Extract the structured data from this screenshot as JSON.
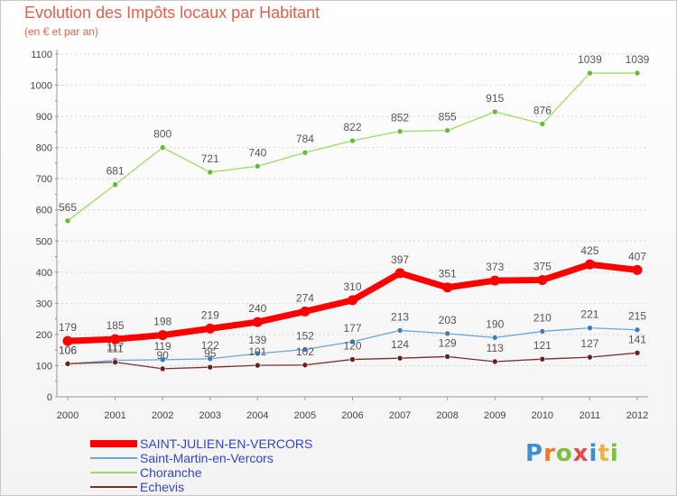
{
  "title": "Evolution des Impôts locaux par Habitant",
  "subtitle": "(en € et par an)",
  "logo": {
    "text": "Proxiti",
    "letter_colors": [
      "#3a8fd6",
      "#e8792b",
      "#7fbf3f",
      "#e84a4a",
      "#3a8fd6",
      "#f0b43a",
      "#7fbf3f"
    ]
  },
  "chart_data": {
    "type": "line",
    "title": "Evolution des Impôts locaux par Habitant",
    "subtitle": "(en € et par an)",
    "x": [
      2000,
      2001,
      2002,
      2003,
      2004,
      2005,
      2006,
      2007,
      2008,
      2009,
      2010,
      2011,
      2012
    ],
    "ylim": [
      0,
      1100
    ],
    "yticks": [
      0,
      100,
      200,
      300,
      400,
      500,
      600,
      700,
      800,
      900,
      1000,
      1100
    ],
    "grid": "horizontal-dashed",
    "legend_position": "bottom-left",
    "series": [
      {
        "name": "Choranche",
        "color": "#99dd66",
        "marker_color": "#66bb33",
        "width": 1.3,
        "values": [
          565,
          681,
          800,
          721,
          740,
          784,
          822,
          852,
          855,
          915,
          876,
          1039,
          1039
        ]
      },
      {
        "name": "Saint-Martin-en-Vercors",
        "color": "#6aa6d6",
        "marker_color": "#3a7cbf",
        "width": 1.3,
        "values": [
          106,
          117,
          119,
          122,
          139,
          152,
          177,
          213,
          203,
          190,
          210,
          221,
          215
        ]
      },
      {
        "name": "Echevis",
        "color": "#7a2f2f",
        "marker_color": "#6a1f1f",
        "width": 1.3,
        "values": [
          106,
          111,
          90,
          95,
          101,
          102,
          120,
          124,
          129,
          113,
          121,
          127,
          141
        ]
      },
      {
        "name": "SAINT-JULIEN-EN-VERCORS",
        "color": "#ff0000",
        "marker_color": "#ff0000",
        "width": 7,
        "values": [
          179,
          185,
          198,
          219,
          240,
          274,
          310,
          397,
          351,
          373,
          375,
          425,
          407
        ]
      }
    ],
    "legend": [
      {
        "name": "SAINT-JULIEN-EN-VERCORS",
        "color": "#ff0000",
        "text_color": "#3344cc",
        "thick": true
      },
      {
        "name": "Saint-Martin-en-Vercors",
        "color": "#6aa6d6",
        "text_color": "#3344cc",
        "thick": false
      },
      {
        "name": "Choranche",
        "color": "#99dd66",
        "text_color": "#3344cc",
        "thick": false
      },
      {
        "name": "Echevis",
        "color": "#7a2f2f",
        "text_color": "#3344cc",
        "thick": false
      }
    ]
  }
}
